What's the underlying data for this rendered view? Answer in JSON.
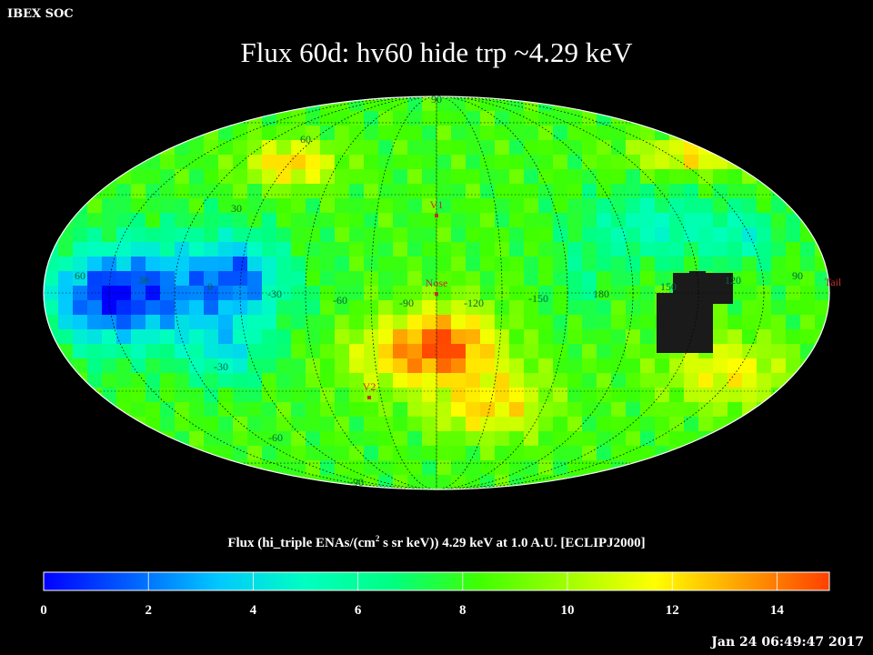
{
  "header": {
    "label": "IBEX SOC"
  },
  "title": "Flux   60d: hv60 hide trp ~4.29 keV",
  "timestamp": "Jan 24 06:49:47 2017",
  "colorbar": {
    "title_prefix": "Flux (hi_triple ENAs/(cm",
    "title_sup": "2",
    "title_suffix": " s sr keV))  4.29 keV at 1.0 A.U. [ECLIPJ2000]",
    "min": 0,
    "max": 15,
    "tick_labels": [
      "0",
      "2",
      "4",
      "6",
      "8",
      "10",
      "12",
      "14"
    ],
    "tick_values": [
      0,
      2,
      4,
      6,
      8,
      10,
      12,
      14
    ],
    "colors": [
      "#0000ff",
      "#0060ff",
      "#00c8ff",
      "#00ffc0",
      "#00ff80",
      "#40ff00",
      "#a0ff00",
      "#ffff00",
      "#ffa000",
      "#ff4000"
    ]
  },
  "chart_data": {
    "type": "heatmap",
    "projection": "Mollweide",
    "frame": "ECLIPJ2000",
    "quantity": "Flux",
    "energy": "4.29 keV",
    "distance": "1.0 A.U.",
    "scale_range": [
      0,
      15
    ],
    "lat_labels": [
      "90",
      "60",
      "30",
      "-30",
      "-60",
      "-90"
    ],
    "lon_labels": [
      "60",
      "30",
      "0",
      "-30",
      "-60",
      "-90",
      "-120",
      "-150",
      "180",
      "150",
      "120",
      "90"
    ],
    "markers": [
      {
        "name": "V1",
        "color": "#c03030"
      },
      {
        "name": "Nose",
        "color": "#c03030"
      },
      {
        "name": "V2",
        "color": "#c03030"
      },
      {
        "name": "Tail",
        "color": "#c03030"
      }
    ],
    "regions": [
      {
        "description": "low flux region",
        "flux_range": [
          1,
          4
        ]
      },
      {
        "description": "high flux region",
        "flux_range": [
          10,
          14
        ]
      },
      {
        "description": "masked / no data",
        "color": "#1a1a1a"
      }
    ]
  }
}
